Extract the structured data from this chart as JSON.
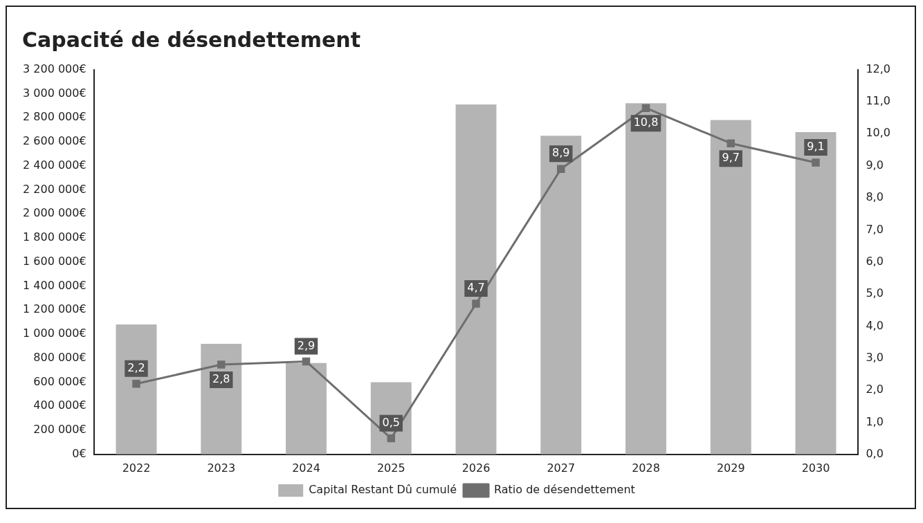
{
  "chart_data": {
    "type": "bar",
    "title": "Capacité de désendettement",
    "categories": [
      "2022",
      "2023",
      "2024",
      "2025",
      "2026",
      "2027",
      "2028",
      "2029",
      "2030"
    ],
    "series": [
      {
        "name": "Capital Restant Dû cumulé",
        "color": "#b4b4b4",
        "values": [
          1080000,
          920000,
          760000,
          600000,
          2910000,
          2650000,
          2920000,
          2780000,
          2680000
        ]
      },
      {
        "name": "Ratio de désendettement",
        "type": "line",
        "axis": "y2",
        "color": "#6e6e6e",
        "values": [
          2.2,
          2.8,
          2.9,
          0.5,
          4.7,
          8.9,
          10.8,
          9.7,
          9.1
        ],
        "value_labels": [
          "2,2",
          "2,8",
          "2,9",
          "0,5",
          "4,7",
          "8,9",
          "10,8",
          "9,7",
          "9,1"
        ]
      }
    ],
    "ylim": [
      0,
      3200000
    ],
    "yticks": [
      {
        "value": 0,
        "label": "0€"
      },
      {
        "value": 200000,
        "label": "200 000€"
      },
      {
        "value": 400000,
        "label": "400 000€"
      },
      {
        "value": 600000,
        "label": "600 000€"
      },
      {
        "value": 800000,
        "label": "800 000€"
      },
      {
        "value": 1000000,
        "label": "1 000 000€"
      },
      {
        "value": 1200000,
        "label": "1 200 000€"
      },
      {
        "value": 1400000,
        "label": "1 400 000€"
      },
      {
        "value": 1600000,
        "label": "1 600 000€"
      },
      {
        "value": 1800000,
        "label": "1 800 000€"
      },
      {
        "value": 2000000,
        "label": "2 000 000€"
      },
      {
        "value": 2200000,
        "label": "2 200 000€"
      },
      {
        "value": 2400000,
        "label": "2 400 000€"
      },
      {
        "value": 2600000,
        "label": "2 600 000€"
      },
      {
        "value": 2800000,
        "label": "2 800 000€"
      },
      {
        "value": 3000000,
        "label": "3 000 000€"
      },
      {
        "value": 3200000,
        "label": "3 200 000€"
      }
    ],
    "y2lim": [
      0,
      12
    ],
    "y2ticks": [
      {
        "value": 0,
        "label": "0,0"
      },
      {
        "value": 1,
        "label": "1,0"
      },
      {
        "value": 2,
        "label": "2,0"
      },
      {
        "value": 3,
        "label": "3,0"
      },
      {
        "value": 4,
        "label": "4,0"
      },
      {
        "value": 5,
        "label": "5,0"
      },
      {
        "value": 6,
        "label": "6,0"
      },
      {
        "value": 7,
        "label": "7,0"
      },
      {
        "value": 8,
        "label": "8,0"
      },
      {
        "value": 9,
        "label": "9,0"
      },
      {
        "value": 10,
        "label": "10,0"
      },
      {
        "value": 11,
        "label": "11,0"
      },
      {
        "value": 12,
        "label": "12,0"
      }
    ],
    "grid": false,
    "legend": "bottom",
    "marker": "square",
    "line_style": "solid"
  }
}
